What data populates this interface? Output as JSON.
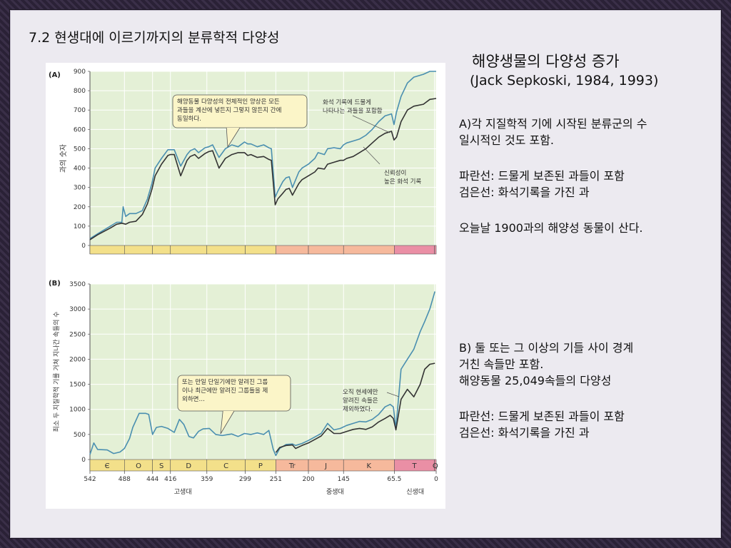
{
  "title": "7.2 현생대에 이르기까지의 분류학적 다양성",
  "right": {
    "heading": "해양생물의 다양성 증가",
    "citation": "(Jack Sepkoski, 1984, 1993)",
    "a_line1": "A)각 지질학적 기에 시작된 분류군의 수",
    "a_line2": "일시적인 것도 포함.",
    "a_blue": "파란선: 드물게 보존된 과들이 포함",
    "a_black": "검은선: 화석기록을 가진 과",
    "a_today": "오늘날 1900과의 해양성 동물이 산다.",
    "b_line1": "B) 둘 또는 그 이상의 기들 사이 경계",
    "b_line2": "거친 속들만 포함.",
    "b_line3": "해양동물 25,049속들의 다양성",
    "b_blue": "파란선: 드물게 보존된 과들이 포함",
    "b_black": "검은선: 화석기록을 가진 과"
  },
  "chart_data": [
    {
      "panel": "(A)",
      "type": "line",
      "ylabel": "과의 숫자",
      "xlim": [
        542,
        0
      ],
      "ylim": [
        0,
        900
      ],
      "yticks": [
        0,
        100,
        200,
        300,
        400,
        500,
        600,
        700,
        800,
        900
      ],
      "grid": true,
      "annotations": {
        "callout1": [
          "해양동물 다양성의 전체적인 양상은 모든",
          "과들을 계산에 넣든지 그렇지 않든지 간에",
          "동일하다."
        ],
        "callout2": [
          "화석 기록에 드물게",
          "나타나는 과들을 포함함"
        ],
        "callout3": [
          "신뢰성이",
          "높은 화석 기록"
        ]
      },
      "series": [
        {
          "color": "#4a8fb0",
          "x": [
            542,
            530,
            510,
            500,
            492,
            490,
            486,
            480,
            470,
            460,
            452,
            445,
            440,
            430,
            420,
            416,
            410,
            400,
            390,
            385,
            378,
            372,
            362,
            356,
            350,
            340,
            330,
            320,
            310,
            300,
            295,
            290,
            280,
            270,
            262,
            258,
            252,
            248,
            240,
            235,
            230,
            225,
            215,
            210,
            200,
            190,
            185,
            175,
            170,
            160,
            150,
            145,
            140,
            130,
            120,
            110,
            100,
            90,
            80,
            70,
            66,
            62,
            55,
            45,
            35,
            20,
            10,
            0
          ],
          "y": [
            35,
            60,
            100,
            120,
            120,
            200,
            150,
            165,
            165,
            180,
            240,
            320,
            400,
            450,
            495,
            495,
            495,
            410,
            470,
            490,
            500,
            480,
            505,
            510,
            520,
            455,
            500,
            520,
            510,
            535,
            525,
            525,
            510,
            520,
            505,
            500,
            250,
            280,
            330,
            350,
            355,
            300,
            380,
            400,
            420,
            450,
            480,
            470,
            500,
            505,
            500,
            520,
            530,
            540,
            550,
            570,
            600,
            640,
            670,
            680,
            625,
            690,
            770,
            840,
            870,
            885,
            910,
            935
          ]
        },
        {
          "color": "#333333",
          "x": [
            542,
            530,
            510,
            500,
            492,
            486,
            480,
            470,
            460,
            452,
            445,
            440,
            430,
            420,
            416,
            410,
            400,
            390,
            385,
            378,
            372,
            362,
            356,
            350,
            340,
            330,
            320,
            310,
            300,
            295,
            290,
            280,
            270,
            262,
            258,
            252,
            248,
            240,
            235,
            230,
            225,
            215,
            210,
            200,
            190,
            185,
            175,
            170,
            160,
            150,
            145,
            140,
            130,
            120,
            110,
            100,
            90,
            80,
            70,
            66,
            62,
            55,
            45,
            35,
            20,
            10,
            0
          ],
          "y": [
            30,
            55,
            90,
            110,
            115,
            110,
            120,
            125,
            160,
            215,
            290,
            360,
            420,
            465,
            470,
            470,
            360,
            440,
            460,
            470,
            450,
            475,
            485,
            490,
            400,
            450,
            470,
            480,
            480,
            465,
            470,
            455,
            460,
            445,
            440,
            210,
            240,
            270,
            290,
            295,
            260,
            320,
            340,
            360,
            380,
            400,
            395,
            420,
            430,
            440,
            440,
            450,
            460,
            480,
            500,
            530,
            560,
            580,
            590,
            545,
            560,
            640,
            700,
            720,
            730,
            755,
            760
          ]
        }
      ],
      "period_bar_colors": [
        "#f3e08a",
        "#f3e08a",
        "#f3e08a",
        "#f3e08a",
        "#f3e08a",
        "#f3e08a",
        "#f6b99c",
        "#f6b99c",
        "#f6b99c",
        "#ea8fa5",
        "#ea8fa5"
      ]
    },
    {
      "panel": "(B)",
      "type": "line",
      "ylabel": "최소 두 지질학적 기를 거쳐 지나간 속들의 수",
      "xlim": [
        542,
        0
      ],
      "ylim": [
        0,
        3500
      ],
      "yticks": [
        0,
        500,
        1000,
        1500,
        2000,
        2500,
        3000,
        3500
      ],
      "xticks": [
        542,
        488,
        444,
        416,
        359,
        299,
        251,
        200,
        145,
        65.5,
        0
      ],
      "grid": true,
      "eras": [
        "고생대",
        "중생대",
        "신생대"
      ],
      "periods": [
        "Є",
        "O",
        "S",
        "D",
        "C",
        "P",
        "Tr",
        "J",
        "K",
        "T",
        "Q"
      ],
      "annotations": {
        "callout1": [
          "또는 만일 단일기에만 알려진 그룹",
          "이나 최근에만 알려진 그룹들을 제",
          "외하면…"
        ],
        "callout2": [
          "오직 현세에만",
          "알려진 속들은",
          "제외하였다."
        ]
      },
      "series": [
        {
          "color": "#4a8fb0",
          "x": [
            542,
            536,
            530,
            515,
            505,
            495,
            488,
            480,
            475,
            465,
            455,
            450,
            444,
            438,
            430,
            420,
            410,
            402,
            395,
            387,
            380,
            372,
            365,
            355,
            345,
            335,
            320,
            310,
            300,
            290,
            280,
            270,
            262,
            255,
            251,
            245,
            235,
            225,
            220,
            210,
            200,
            190,
            180,
            170,
            160,
            150,
            140,
            130,
            120,
            110,
            100,
            90,
            80,
            72,
            67,
            63,
            55,
            45,
            35,
            25,
            18,
            10,
            2
          ],
          "y": [
            100,
            330,
            200,
            190,
            120,
            150,
            220,
            420,
            640,
            920,
            920,
            900,
            500,
            640,
            660,
            620,
            540,
            800,
            700,
            460,
            430,
            560,
            610,
            620,
            500,
            480,
            510,
            460,
            520,
            500,
            530,
            500,
            580,
            200,
            80,
            220,
            300,
            310,
            280,
            320,
            380,
            450,
            520,
            720,
            590,
            620,
            680,
            720,
            760,
            750,
            800,
            900,
            1050,
            1100,
            1050,
            620,
            1800,
            2000,
            2200,
            2550,
            2750,
            3000,
            3350
          ]
        },
        {
          "color": "#333333",
          "x": [
            251,
            245,
            235,
            225,
            220,
            210,
            200,
            190,
            180,
            170,
            160,
            150,
            140,
            130,
            120,
            110,
            100,
            90,
            80,
            72,
            67,
            63,
            55,
            45,
            35,
            25,
            18,
            10,
            2
          ],
          "y": [
            140,
            240,
            280,
            290,
            220,
            280,
            330,
            400,
            470,
            620,
            520,
            520,
            560,
            600,
            620,
            600,
            650,
            750,
            820,
            880,
            820,
            590,
            1200,
            1400,
            1250,
            1500,
            1800,
            1900,
            1920
          ]
        }
      ],
      "period_bar_colors": [
        "#f3e08a",
        "#f3e08a",
        "#f3e08a",
        "#f3e08a",
        "#f3e08a",
        "#f3e08a",
        "#f6b99c",
        "#f6b99c",
        "#f6b99c",
        "#ea8fa5",
        "#ea8fa5"
      ]
    }
  ]
}
